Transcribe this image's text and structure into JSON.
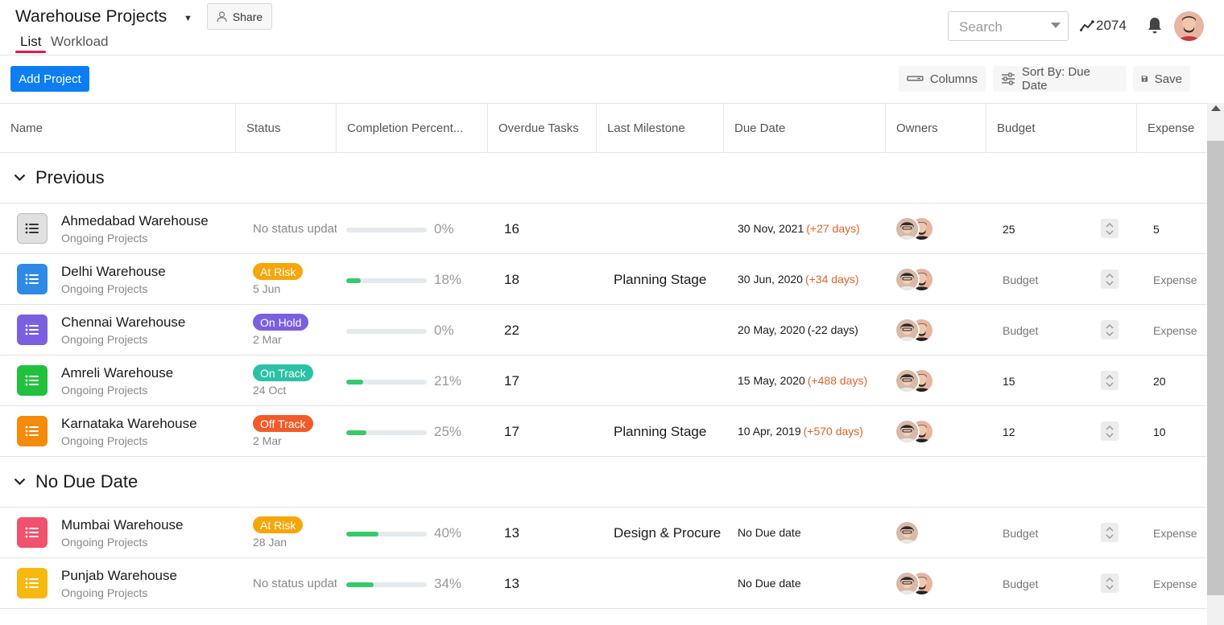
{
  "header": {
    "title": "Warehouse Projects",
    "share_label": "Share",
    "tabs": [
      {
        "label": "List",
        "active": true
      },
      {
        "label": "Workload",
        "active": false
      }
    ],
    "search_placeholder": "Search",
    "activity_count": "2074"
  },
  "toolbar": {
    "add_project_label": "Add Project",
    "columns_label": "Columns",
    "sort_label": "Sort By: Due Date",
    "save_label": "Save"
  },
  "columns": [
    "Name",
    "Status",
    "Completion Percent...",
    "Overdue Tasks",
    "Last Milestone",
    "Due Date",
    "Owners",
    "Budget",
    "Expense"
  ],
  "groups": [
    {
      "label": "Previous",
      "rows": [
        {
          "name": "Ahmedabad Warehouse",
          "sub": "Ongoing Projects",
          "icon_color": "#e0e0e0",
          "status": "No status update",
          "status_color": "",
          "status_date": "",
          "completion": 0,
          "completion_label": "0%",
          "overdue": "16",
          "milestone": "",
          "due": "30 Nov, 2021",
          "due_rel": "(+27 days)",
          "owners": 2,
          "budget": "25",
          "expense": "5"
        },
        {
          "name": "Delhi Warehouse",
          "sub": "Ongoing Projects",
          "icon_color": "#2e8ae6",
          "status": "At Risk",
          "status_color": "#f5a70a",
          "status_date": "5 Jun",
          "completion": 18,
          "completion_label": "18%",
          "overdue": "18",
          "milestone": "Planning Stage",
          "due": "30 Jun, 2020",
          "due_rel": "(+34 days)",
          "owners": 2,
          "budget": "Budget",
          "expense": "Expense"
        },
        {
          "name": "Chennai Warehouse",
          "sub": "Ongoing Projects",
          "icon_color": "#7b5fe0",
          "status": "On Hold",
          "status_color": "#7b5fe0",
          "status_date": "2 Mar",
          "completion": 0,
          "completion_label": "0%",
          "overdue": "22",
          "milestone": "",
          "due": "20 May, 2020",
          "due_rel": "(-22 days)",
          "owners": 2,
          "budget": "Budget",
          "expense": "Expense"
        },
        {
          "name": "Amreli Warehouse",
          "sub": "Ongoing Projects",
          "icon_color": "#22c13d",
          "status": "On Track",
          "status_color": "#2cc1a4",
          "status_date": "24 Oct",
          "completion": 21,
          "completion_label": "21%",
          "overdue": "17",
          "milestone": "",
          "due": "15 May, 2020",
          "due_rel": "(+488 days)",
          "owners": 2,
          "budget": "15",
          "expense": "20"
        },
        {
          "name": "Karnataka Warehouse",
          "sub": "Ongoing Projects",
          "icon_color": "#f58a0b",
          "status": "Off Track",
          "status_color": "#f15b2a",
          "status_date": "2 Mar",
          "completion": 25,
          "completion_label": "25%",
          "overdue": "17",
          "milestone": "Planning Stage",
          "due": "10 Apr, 2019",
          "due_rel": "(+570 days)",
          "owners": 2,
          "budget": "12",
          "expense": "10"
        }
      ]
    },
    {
      "label": "No Due Date",
      "rows": [
        {
          "name": "Mumbai Warehouse",
          "sub": "Ongoing Projects",
          "icon_color": "#f0516c",
          "status": "At Risk",
          "status_color": "#f5a70a",
          "status_date": "28 Jan",
          "completion": 40,
          "completion_label": "40%",
          "overdue": "13",
          "milestone": "Design & Procure",
          "due": "No Due date",
          "due_rel": "",
          "owners": 1,
          "budget": "Budget",
          "expense": "Expense"
        },
        {
          "name": "Punjab Warehouse",
          "sub": "Ongoing Projects",
          "icon_color": "#f7b910",
          "status": "No status update",
          "status_color": "",
          "status_date": "",
          "completion": 34,
          "completion_label": "34%",
          "overdue": "13",
          "milestone": "",
          "due": "No Due date",
          "due_rel": "",
          "owners": 2,
          "budget": "Budget",
          "expense": "Expense"
        }
      ]
    }
  ],
  "colors": {
    "accent": "#0d7ef2",
    "tab_underline": "#e8174a",
    "progress": "#38c96a",
    "overdue_rel": "#e0622c"
  }
}
